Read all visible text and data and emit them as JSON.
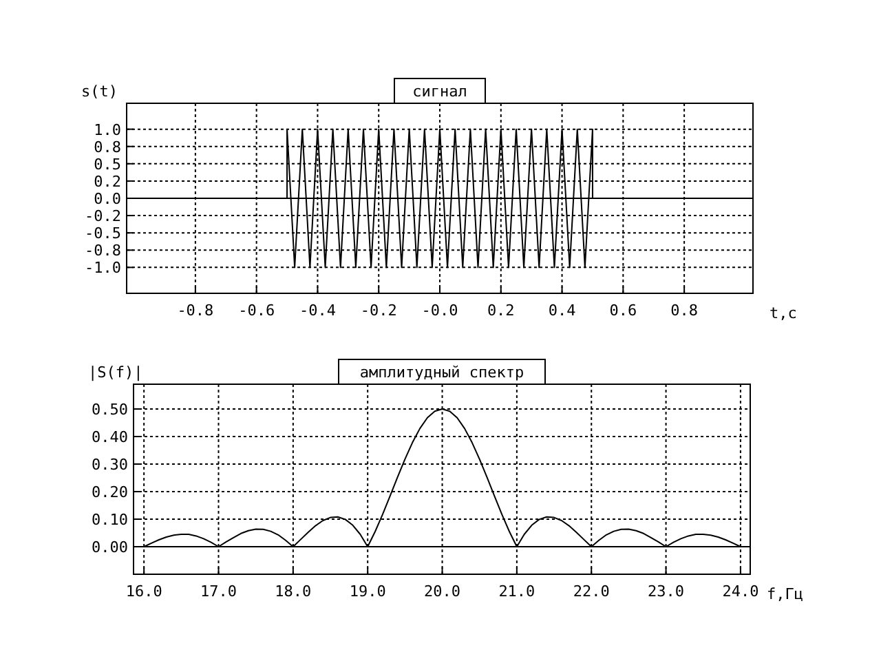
{
  "chart_data": [
    {
      "type": "line",
      "title": "сигнал",
      "xlabel": "t,c",
      "ylabel": "s(t)",
      "xlim": [
        -1.025,
        1.025
      ],
      "ylim": [
        -1.375,
        1.375
      ],
      "xticks": [
        -0.8,
        -0.6,
        -0.4,
        -0.2,
        {
          "value": 0,
          "label": "-0.0"
        },
        0.2,
        0.4,
        0.6,
        0.8
      ],
      "yticks": [
        {
          "value": -1,
          "label": "-1.0"
        },
        {
          "value": -0.75,
          "label": "-0.8"
        },
        {
          "value": -0.5,
          "label": "-0.5"
        },
        {
          "value": -0.25,
          "label": "-0.2"
        },
        {
          "value": 0,
          "label": "0.0"
        },
        {
          "value": 0.25,
          "label": "0.2"
        },
        {
          "value": 0.5,
          "label": "0.5"
        },
        {
          "value": 0.75,
          "label": "0.8"
        },
        {
          "value": 1,
          "label": "1.0"
        }
      ],
      "grid": true,
      "ref_lines": [
        {
          "axis": "y",
          "value": 0
        }
      ],
      "series": [
        {
          "color": "#000000",
          "x": [
            -0.5,
            -0.5,
            -0.4875,
            -0.475,
            -0.4625,
            -0.45,
            -0.4375,
            -0.425,
            -0.4125,
            -0.4,
            -0.3875,
            -0.375,
            -0.3625,
            -0.35,
            -0.3375,
            -0.325,
            -0.3125,
            -0.3,
            -0.2875,
            -0.275,
            -0.2625,
            -0.25,
            -0.2375,
            -0.225,
            -0.2125,
            -0.2,
            -0.1875,
            -0.175,
            -0.1625,
            -0.15,
            -0.1375,
            -0.125,
            -0.1125,
            -0.1,
            -0.0875,
            -0.075,
            -0.0625,
            -0.05,
            -0.0375,
            -0.025,
            -0.0125,
            0,
            0.0125,
            0.025,
            0.0375,
            0.05,
            0.0625,
            0.075,
            0.0875,
            0.1,
            0.1125,
            0.125,
            0.1375,
            0.15,
            0.1625,
            0.175,
            0.1875,
            0.2,
            0.2125,
            0.225,
            0.2375,
            0.25,
            0.2625,
            0.275,
            0.2875,
            0.3,
            0.3125,
            0.325,
            0.3375,
            0.35,
            0.3625,
            0.375,
            0.3875,
            0.4,
            0.4125,
            0.425,
            0.4375,
            0.45,
            0.4625,
            0.475,
            0.4875,
            0.5,
            0.5
          ],
          "values": [
            0,
            1,
            0,
            -1,
            0,
            1,
            0,
            -1,
            0,
            1,
            0,
            -1,
            0,
            1,
            0,
            -1,
            0,
            1,
            0,
            -1,
            0,
            1,
            0,
            -1,
            0,
            1,
            0,
            -1,
            0,
            1,
            0,
            -1,
            0,
            1,
            0,
            -1,
            0,
            1,
            0,
            -1,
            0,
            1,
            0,
            -1,
            0,
            1,
            0,
            -1,
            0,
            1,
            0,
            -1,
            0,
            1,
            0,
            -1,
            0,
            1,
            0,
            -1,
            0,
            1,
            0,
            -1,
            0,
            1,
            0,
            -1,
            0,
            1,
            0,
            -1,
            0,
            1,
            0,
            -1,
            0,
            1,
            0,
            -1,
            0,
            1,
            0
          ]
        }
      ]
    },
    {
      "type": "line",
      "title": "амплитудный спектр",
      "xlabel": "f,Гц",
      "ylabel": "|S(f)|",
      "xlim": [
        15.86,
        24.13
      ],
      "ylim": [
        -0.1,
        0.59
      ],
      "xticks": [
        {
          "value": 16,
          "label": "16.0"
        },
        {
          "value": 17,
          "label": "17.0"
        },
        {
          "value": 18,
          "label": "18.0"
        },
        {
          "value": 19,
          "label": "19.0"
        },
        {
          "value": 20,
          "label": "20.0"
        },
        {
          "value": 21,
          "label": "21.0"
        },
        {
          "value": 22,
          "label": "22.0"
        },
        {
          "value": 23,
          "label": "23.0"
        },
        {
          "value": 24,
          "label": "24.0"
        }
      ],
      "yticks": [
        {
          "value": 0,
          "label": "0.00"
        },
        {
          "value": 0.1,
          "label": "0.10"
        },
        {
          "value": 0.2,
          "label": "0.20"
        },
        {
          "value": 0.3,
          "label": "0.30"
        },
        {
          "value": 0.4,
          "label": "0.40"
        },
        {
          "value": 0.5,
          "label": "0.50"
        }
      ],
      "grid": true,
      "ref_lines": [
        {
          "axis": "y",
          "value": 0
        }
      ],
      "series": [
        {
          "color": "#000000",
          "x": [
            16,
            16.1,
            16.2,
            16.3,
            16.4,
            16.5,
            16.6,
            16.7,
            16.8,
            16.9,
            17,
            17.1,
            17.2,
            17.3,
            17.4,
            17.5,
            17.6,
            17.7,
            17.8,
            17.9,
            18,
            18.1,
            18.2,
            18.3,
            18.4,
            18.5,
            18.6,
            18.7,
            18.8,
            18.9,
            19,
            19.1,
            19.2,
            19.3,
            19.4,
            19.5,
            19.6,
            19.7,
            19.8,
            19.9,
            20,
            20.1,
            20.2,
            20.3,
            20.4,
            20.5,
            20.6,
            20.7,
            20.8,
            20.9,
            21,
            21.1,
            21.2,
            21.3,
            21.4,
            21.5,
            21.6,
            21.7,
            21.8,
            21.9,
            22,
            22.1,
            22.2,
            22.3,
            22.4,
            22.5,
            22.6,
            22.7,
            22.8,
            22.9,
            23,
            23.1,
            23.2,
            23.3,
            23.4,
            23.5,
            23.6,
            23.7,
            23.8,
            23.9,
            24
          ],
          "values": [
            0,
            0.013,
            0.025,
            0.035,
            0.042,
            0.045,
            0.045,
            0.039,
            0.029,
            0.016,
            0,
            0.017,
            0.033,
            0.048,
            0.058,
            0.064,
            0.063,
            0.056,
            0.043,
            0.023,
            0,
            0.026,
            0.052,
            0.076,
            0.095,
            0.106,
            0.108,
            0.099,
            0.078,
            0.045,
            0,
            0.055,
            0.117,
            0.184,
            0.252,
            0.318,
            0.378,
            0.429,
            0.468,
            0.492,
            0.5,
            0.492,
            0.468,
            0.429,
            0.378,
            0.318,
            0.252,
            0.184,
            0.117,
            0.055,
            0,
            0.045,
            0.078,
            0.099,
            0.108,
            0.106,
            0.095,
            0.076,
            0.052,
            0.026,
            0,
            0.023,
            0.043,
            0.056,
            0.063,
            0.064,
            0.058,
            0.048,
            0.033,
            0.017,
            0,
            0.016,
            0.029,
            0.039,
            0.045,
            0.045,
            0.042,
            0.035,
            0.025,
            0.013,
            0
          ]
        }
      ]
    }
  ]
}
